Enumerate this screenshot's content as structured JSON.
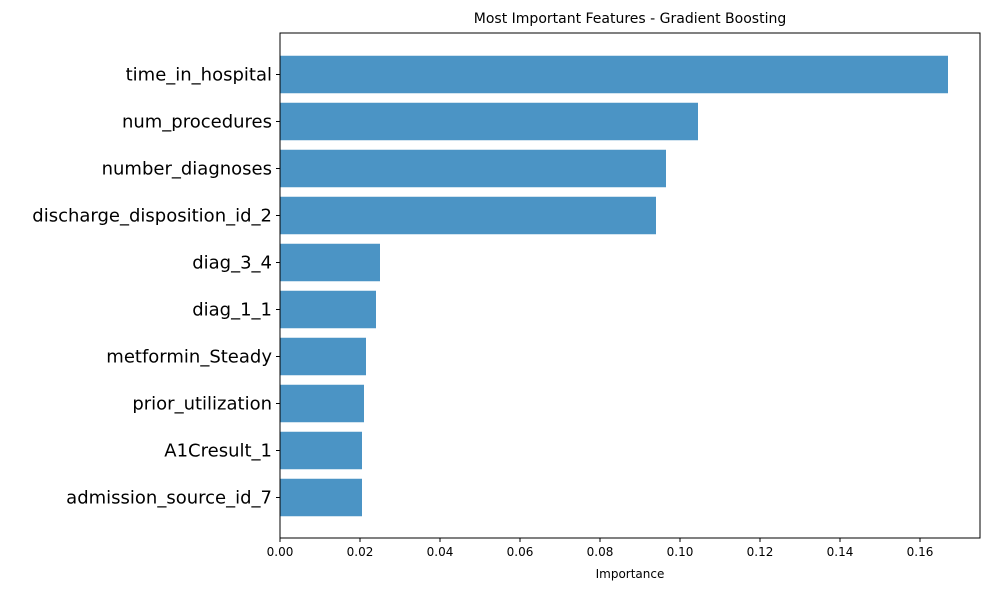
{
  "chart_data": {
    "type": "bar",
    "orientation": "horizontal",
    "title": "Most Important Features - Gradient Boosting",
    "xlabel": "Importance",
    "ylabel": "",
    "xlim": [
      0,
      0.175
    ],
    "xticks": [
      "0.00",
      "0.02",
      "0.04",
      "0.06",
      "0.08",
      "0.10",
      "0.12",
      "0.14",
      "0.16"
    ],
    "xtick_values": [
      0,
      0.02,
      0.04,
      0.06,
      0.08,
      0.1,
      0.12,
      0.14,
      0.16
    ],
    "grid": false,
    "bar_color": "#4b94c5",
    "categories": [
      "time_in_hospital",
      "num_procedures",
      "number_diagnoses",
      "discharge_disposition_id_2",
      "diag_3_4",
      "diag_1_1",
      "metformin_Steady",
      "prior_utilization",
      "A1Cresult_1",
      "admission_source_id_7"
    ],
    "values": [
      0.167,
      0.1045,
      0.0965,
      0.094,
      0.025,
      0.024,
      0.0215,
      0.021,
      0.0205,
      0.0205
    ]
  }
}
